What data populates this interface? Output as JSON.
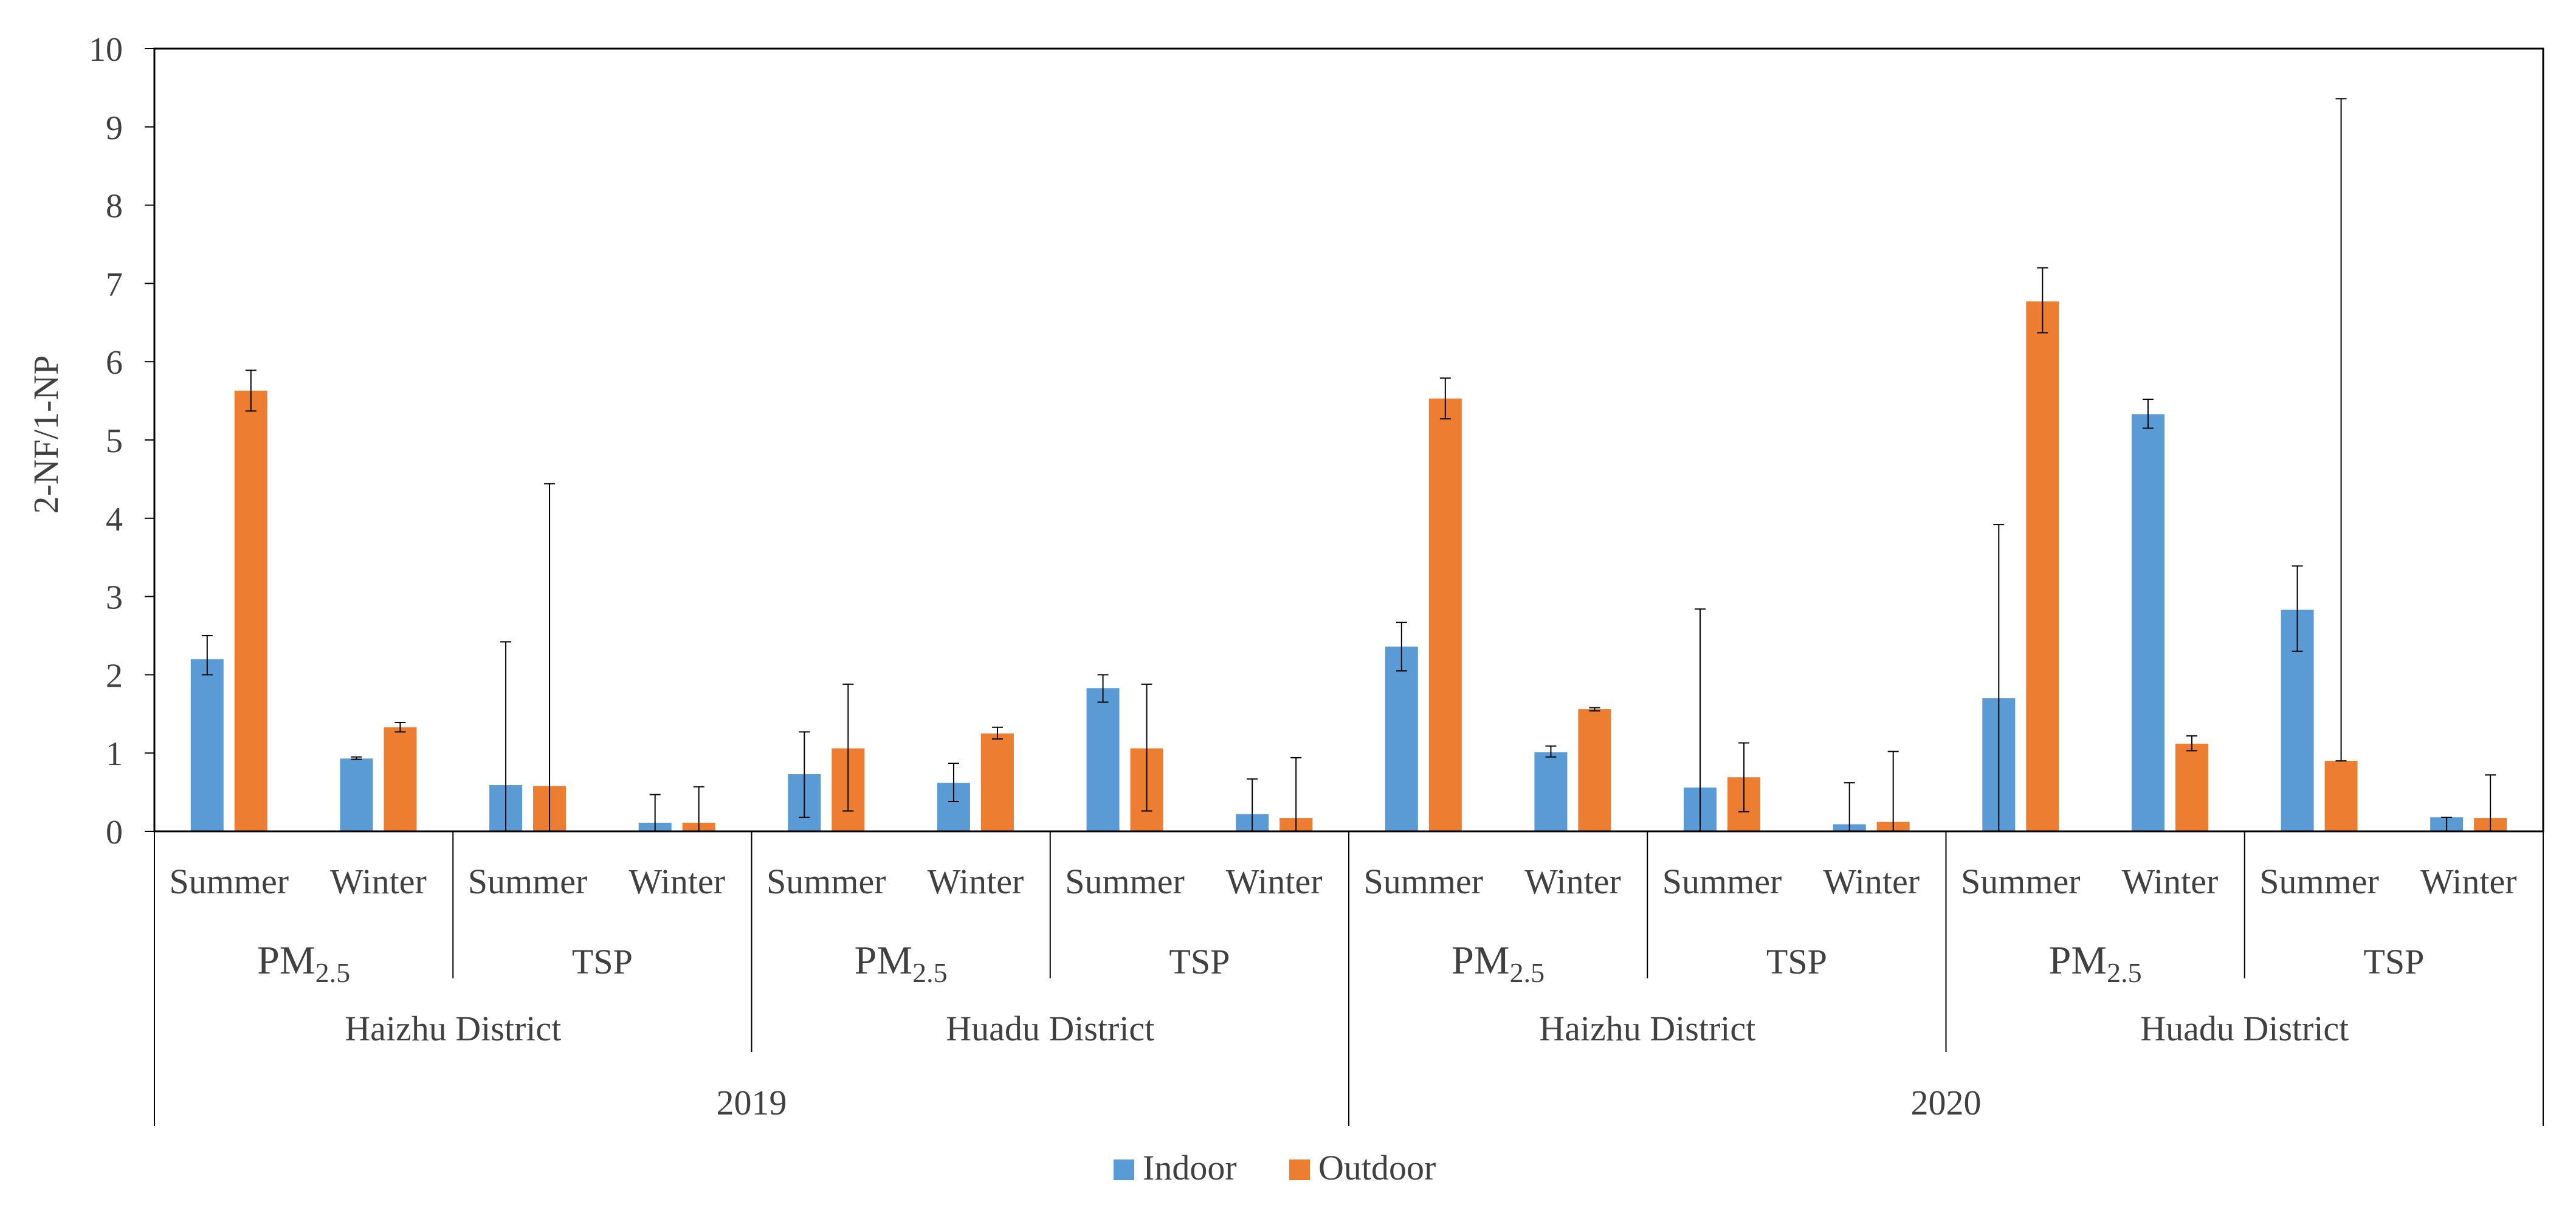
{
  "chart_data": {
    "type": "bar",
    "ylabel": "2-NF/1-NP",
    "ylim": [
      0,
      10
    ],
    "yticks": [
      0,
      1,
      2,
      3,
      4,
      5,
      6,
      7,
      8,
      9,
      10
    ],
    "series": [
      {
        "name": "Indoor",
        "color": "#5B9BD5",
        "values": [
          2.2,
          0.93,
          0.59,
          0.11,
          0.73,
          0.62,
          1.83,
          0.22,
          2.36,
          1.01,
          0.56,
          0.09,
          1.7,
          5.33,
          2.83,
          0.18
        ],
        "err_low": [
          2.0,
          0.92,
          0.0,
          0.0,
          0.18,
          0.38,
          1.65,
          0.0,
          2.05,
          0.95,
          0.0,
          0.0,
          0.0,
          5.15,
          2.3,
          0.0
        ],
        "err_high": [
          2.5,
          0.95,
          2.42,
          0.47,
          1.27,
          0.87,
          2.0,
          0.67,
          2.67,
          1.09,
          2.84,
          0.62,
          3.92,
          5.52,
          3.39,
          0.18
        ]
      },
      {
        "name": "Outdoor",
        "color": "#ED7D31",
        "values": [
          5.63,
          1.33,
          0.58,
          0.11,
          1.06,
          1.25,
          1.06,
          0.17,
          5.53,
          1.56,
          0.69,
          0.12,
          6.77,
          1.12,
          0.9,
          0.17
        ],
        "err_low": [
          5.37,
          1.27,
          0.0,
          0.0,
          0.26,
          1.18,
          0.26,
          0.0,
          5.27,
          1.54,
          0.25,
          0.0,
          6.37,
          1.03,
          0.9,
          0.0
        ],
        "err_high": [
          5.89,
          1.39,
          4.44,
          0.57,
          1.88,
          1.33,
          1.88,
          0.94,
          5.79,
          1.58,
          1.13,
          1.02,
          7.2,
          1.22,
          9.36,
          0.72
        ]
      }
    ],
    "seasons": [
      "Summer",
      "Winter",
      "Summer",
      "Winter",
      "Summer",
      "Winter",
      "Summer",
      "Winter",
      "Summer",
      "Winter",
      "Summer",
      "Winter",
      "Summer",
      "Winter",
      "Summer",
      "Winter"
    ],
    "particles": [
      {
        "main": "PM",
        "sub": "2.5"
      },
      {
        "main": "TSP",
        "sub": ""
      },
      {
        "main": "PM",
        "sub": "2.5"
      },
      {
        "main": "TSP",
        "sub": ""
      },
      {
        "main": "PM",
        "sub": "2.5"
      },
      {
        "main": "TSP",
        "sub": ""
      },
      {
        "main": "PM",
        "sub": "2.5"
      },
      {
        "main": "TSP",
        "sub": ""
      }
    ],
    "districts": [
      "Haizhu District",
      "Huadu District",
      "Haizhu District",
      "Huadu District"
    ],
    "years": [
      "2019",
      "2020"
    ],
    "legend": [
      "Indoor",
      "Outdoor"
    ]
  }
}
